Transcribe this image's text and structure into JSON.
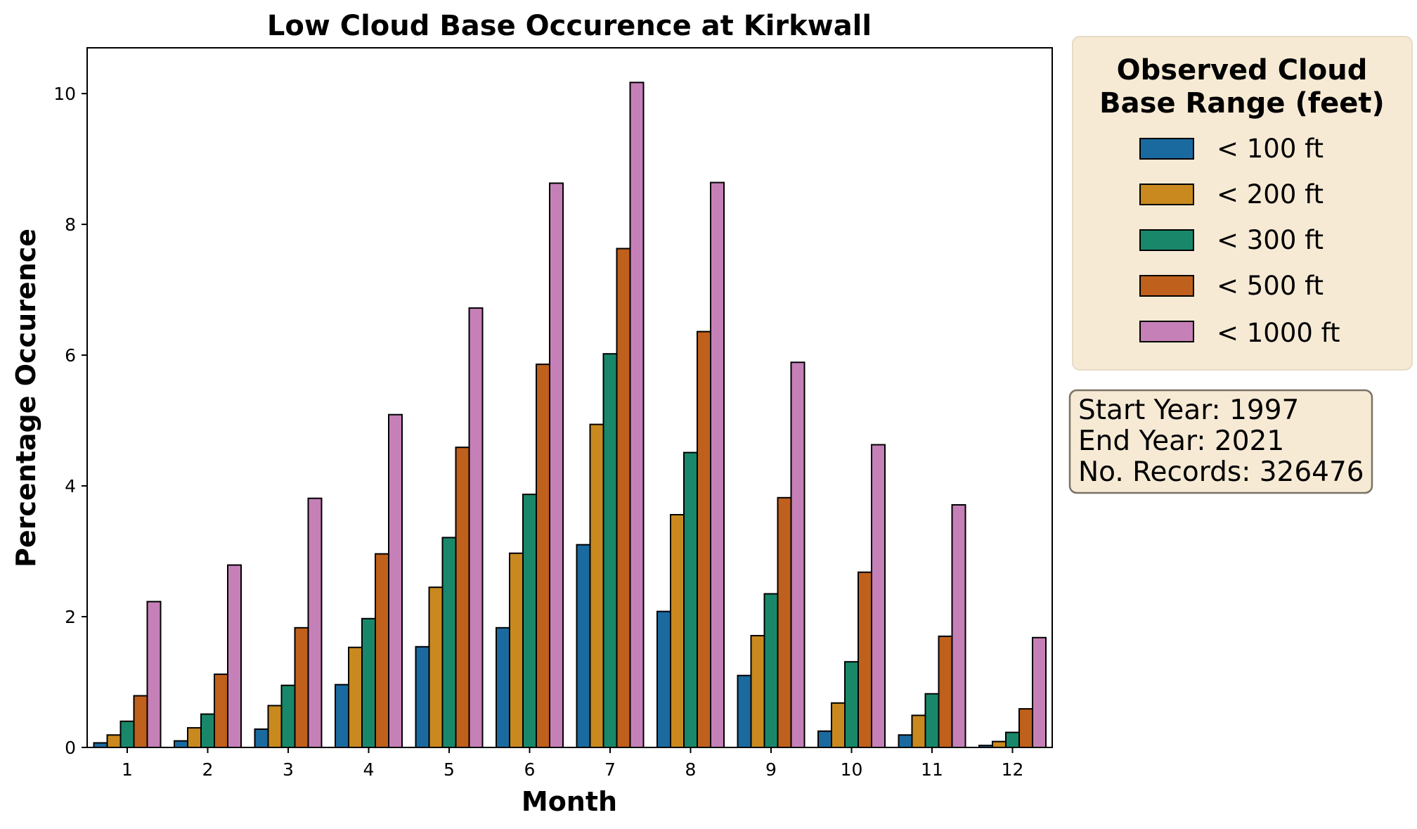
{
  "chart_data": {
    "type": "bar",
    "title": "Low Cloud Base Occurence at Kirkwall",
    "xlabel": "Month",
    "ylabel": "Percentage Occurence",
    "ylim": [
      0,
      10.7
    ],
    "yticks": [
      "0",
      "2",
      "4",
      "6",
      "8",
      "10"
    ],
    "categories": [
      "1",
      "2",
      "3",
      "4",
      "5",
      "6",
      "7",
      "8",
      "9",
      "10",
      "11",
      "12"
    ],
    "legend": {
      "title_line1": "Observed Cloud",
      "title_line2": "Base Range (feet)",
      "placement": "upper-right-outside"
    },
    "series": [
      {
        "name": "< 100 ft",
        "color": "#1a6aa0",
        "values": [
          0.07,
          0.1,
          0.28,
          0.96,
          1.54,
          1.83,
          3.1,
          2.08,
          1.1,
          0.25,
          0.19,
          0.03
        ]
      },
      {
        "name": "< 200 ft",
        "color": "#c9891f",
        "values": [
          0.19,
          0.3,
          0.64,
          1.53,
          2.45,
          2.97,
          4.94,
          3.56,
          1.71,
          0.68,
          0.49,
          0.09
        ]
      },
      {
        "name": "< 300 ft",
        "color": "#19886a",
        "values": [
          0.4,
          0.51,
          0.95,
          1.97,
          3.21,
          3.87,
          6.02,
          4.51,
          2.35,
          1.31,
          0.82,
          0.23
        ]
      },
      {
        "name": "< 500 ft",
        "color": "#bf601c",
        "values": [
          0.79,
          1.12,
          1.83,
          2.96,
          4.59,
          5.86,
          7.63,
          6.36,
          3.82,
          2.68,
          1.7,
          0.59
        ]
      },
      {
        "name": "< 1000 ft",
        "color": "#c680b8",
        "values": [
          2.23,
          2.79,
          3.81,
          5.09,
          6.72,
          8.63,
          10.17,
          8.64,
          5.89,
          4.63,
          3.71,
          1.68
        ]
      }
    ],
    "info": {
      "start_year": "Start Year: 1997",
      "end_year": "End Year: 2021",
      "records": "No. Records: 326476"
    }
  }
}
